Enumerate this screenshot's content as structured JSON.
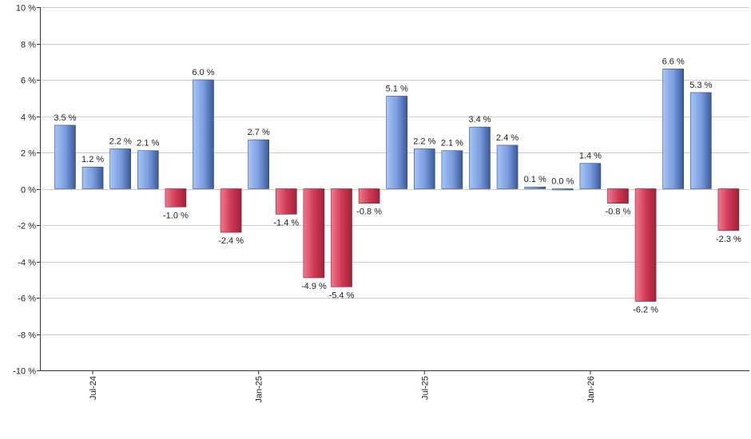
{
  "chart_data": {
    "type": "bar",
    "title": "",
    "xlabel": "",
    "ylabel": "",
    "ylim": [
      -10,
      10
    ],
    "y_ticks": [
      -10,
      -8,
      -6,
      -4,
      -2,
      0,
      2,
      4,
      6,
      8,
      10
    ],
    "y_tick_labels": [
      "-10 %",
      "-8 %",
      "-6 %",
      "-4 %",
      "-2 %",
      "0 %",
      "2 %",
      "4 %",
      "6 %",
      "8 %",
      "10 %"
    ],
    "x_tick_labels": [
      {
        "label": "Jul-24",
        "bar_index": 1
      },
      {
        "label": "Jan-25",
        "bar_index": 7
      },
      {
        "label": "Jul-25",
        "bar_index": 13
      },
      {
        "label": "Jan-26",
        "bar_index": 19
      }
    ],
    "values": [
      3.5,
      1.2,
      2.2,
      2.1,
      -1.0,
      6.0,
      -2.4,
      2.7,
      -1.4,
      -4.9,
      -5.4,
      -0.8,
      5.1,
      2.2,
      2.1,
      3.4,
      2.4,
      0.1,
      0.0,
      1.4,
      -0.8,
      -6.2,
      6.6,
      5.3,
      -2.3
    ],
    "data_labels": [
      "3.5 %",
      "1.2 %",
      "2.2 %",
      "2.1 %",
      "-1.0 %",
      "6.0 %",
      "-2.4 %",
      "2.7 %",
      "-1.4 %",
      "-4.9 %",
      "-5.4 %",
      "-0.8 %",
      "5.1 %",
      "2.2 %",
      "2.1 %",
      "3.4 %",
      "2.4 %",
      "0.1 %",
      "0.0 %",
      "1.4 %",
      "-0.8 %",
      "-6.2 %",
      "6.6 %",
      "5.3 %",
      "-2.3 %"
    ],
    "grid": true,
    "legend": "none",
    "colors": {
      "positive_light": "#a8c4f5",
      "positive_dark": "#3a5a9a",
      "negative_light": "#f07a8e",
      "negative_dark": "#a2203a",
      "grid": "#cccccc",
      "axis": "#333333"
    }
  }
}
